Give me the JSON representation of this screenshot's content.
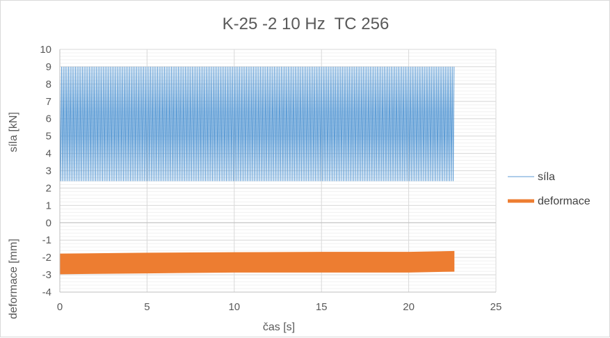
{
  "chart_data": {
    "type": "line",
    "title": "K-25 -2 10 Hz  TC 256",
    "xlabel": "čas [s]",
    "ylabel_top": "síla [kN]",
    "ylabel_bottom": "deformace [mm]",
    "xlim": [
      0,
      25
    ],
    "ylim": [
      -4,
      10
    ],
    "xticks": [
      "0",
      "5",
      "10",
      "15",
      "20",
      "25"
    ],
    "yticks": [
      "-4",
      "-3",
      "-2",
      "-1",
      "0",
      "1",
      "2",
      "3",
      "4",
      "5",
      "6",
      "7",
      "8",
      "9",
      "10"
    ],
    "grid": true,
    "legend_position": "right",
    "series": [
      {
        "name": "síla",
        "color": "#5b9bd5",
        "kind": "oscillation",
        "frequency_hz": 10,
        "x_start": 0,
        "x_end": 22.6,
        "envelope_x": [
          0,
          22.6
        ],
        "upper": [
          9.0,
          9.0
        ],
        "lower": [
          2.4,
          2.4
        ]
      },
      {
        "name": "deformace",
        "color": "#ed7d31",
        "kind": "band",
        "x_start": 0,
        "x_end": 22.6,
        "envelope_x": [
          0,
          5,
          10,
          15,
          20,
          22.6
        ],
        "upper": [
          -1.8,
          -1.75,
          -1.72,
          -1.7,
          -1.7,
          -1.65
        ],
        "lower": [
          -2.95,
          -2.9,
          -2.85,
          -2.85,
          -2.85,
          -2.8
        ]
      }
    ]
  }
}
